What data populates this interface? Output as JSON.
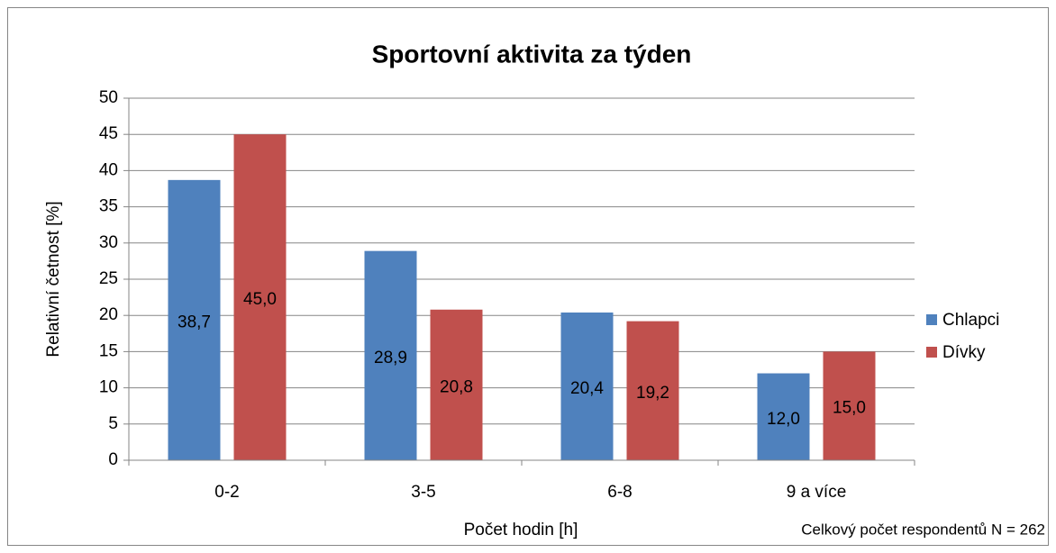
{
  "chart_data": {
    "type": "bar",
    "title": "Sportovní aktivita za týden",
    "x_label": "Počet hodin [h]",
    "y_label": "Relativní četnost [%]",
    "annotation": "Celkový počet respondentů N = 262",
    "categories": [
      "0-2",
      "3-5",
      "6-8",
      "9 a více"
    ],
    "series": [
      {
        "name": "Chlapci",
        "color": "#4f81bd",
        "values": [
          38.7,
          28.9,
          20.4,
          12.0
        ],
        "value_labels": [
          "38,7",
          "28,9",
          "20,4",
          "12,0"
        ]
      },
      {
        "name": "Dívky",
        "color": "#c0504d",
        "values": [
          45.0,
          20.8,
          19.2,
          15.0
        ],
        "value_labels": [
          "45,0",
          "20,8",
          "19,2",
          "15,0"
        ]
      }
    ],
    "ylim": [
      0,
      50
    ],
    "yticks": [
      0,
      5,
      10,
      15,
      20,
      25,
      30,
      35,
      40,
      45,
      50
    ],
    "grid": true,
    "legend": "right"
  }
}
